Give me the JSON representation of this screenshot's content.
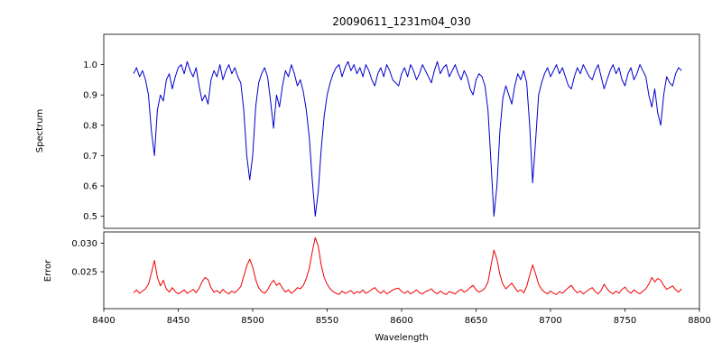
{
  "figure": {
    "background": "#ffffff"
  },
  "chart_data": {
    "type": "line",
    "title": "20090611_1231m04_030",
    "xlabel": "Wavelength",
    "xlim": [
      8400,
      8800
    ],
    "x_start": 8420,
    "x_step": 2,
    "x_ticks": [
      8400,
      8450,
      8500,
      8550,
      8600,
      8650,
      8700,
      8750,
      8800
    ],
    "x_tick_labels": [
      "8400",
      "8450",
      "8500",
      "8550",
      "8600",
      "8650",
      "8700",
      "8750",
      "8800"
    ],
    "grid": false,
    "legend": "none",
    "panels": [
      {
        "name": "spectrum",
        "ylabel": "Spectrum",
        "color": "#0000cc",
        "ylim": [
          0.46,
          1.1
        ],
        "y_ticks": [
          0.5,
          0.6,
          0.7,
          0.8,
          0.9,
          1.0
        ],
        "y_tick_labels": [
          "0.5",
          "0.6",
          "0.7",
          "0.8",
          "0.9",
          "1.0"
        ],
        "values": [
          0.97,
          0.99,
          0.96,
          0.98,
          0.95,
          0.9,
          0.78,
          0.7,
          0.85,
          0.9,
          0.88,
          0.95,
          0.97,
          0.92,
          0.96,
          0.99,
          1.0,
          0.97,
          1.01,
          0.98,
          0.96,
          0.99,
          0.93,
          0.88,
          0.9,
          0.87,
          0.95,
          0.98,
          0.96,
          1.0,
          0.95,
          0.98,
          1.0,
          0.97,
          0.99,
          0.96,
          0.94,
          0.85,
          0.7,
          0.62,
          0.7,
          0.86,
          0.94,
          0.97,
          0.99,
          0.96,
          0.88,
          0.79,
          0.9,
          0.86,
          0.93,
          0.98,
          0.96,
          1.0,
          0.97,
          0.93,
          0.95,
          0.91,
          0.85,
          0.76,
          0.62,
          0.5,
          0.58,
          0.72,
          0.83,
          0.9,
          0.94,
          0.97,
          0.99,
          1.0,
          0.96,
          0.99,
          1.01,
          0.98,
          1.0,
          0.97,
          0.99,
          0.96,
          1.0,
          0.98,
          0.95,
          0.93,
          0.97,
          0.99,
          0.96,
          1.0,
          0.98,
          0.95,
          0.94,
          0.93,
          0.97,
          0.99,
          0.96,
          1.0,
          0.98,
          0.95,
          0.97,
          1.0,
          0.98,
          0.96,
          0.94,
          0.98,
          1.01,
          0.97,
          0.99,
          1.0,
          0.96,
          0.98,
          1.0,
          0.97,
          0.95,
          0.98,
          0.96,
          0.92,
          0.9,
          0.95,
          0.97,
          0.96,
          0.93,
          0.85,
          0.68,
          0.5,
          0.6,
          0.78,
          0.89,
          0.93,
          0.9,
          0.87,
          0.93,
          0.97,
          0.95,
          0.98,
          0.94,
          0.8,
          0.61,
          0.75,
          0.9,
          0.94,
          0.97,
          0.99,
          0.96,
          0.98,
          1.0,
          0.97,
          0.99,
          0.96,
          0.93,
          0.92,
          0.96,
          0.99,
          0.97,
          1.0,
          0.98,
          0.96,
          0.95,
          0.98,
          1.0,
          0.96,
          0.92,
          0.95,
          0.98,
          1.0,
          0.97,
          0.99,
          0.95,
          0.93,
          0.97,
          0.99,
          0.95,
          0.97,
          1.0,
          0.98,
          0.96,
          0.9,
          0.86,
          0.92,
          0.84,
          0.8,
          0.9,
          0.96,
          0.94,
          0.93,
          0.97,
          0.99,
          0.98
        ]
      },
      {
        "name": "error",
        "ylabel": "Error",
        "color": "#ee0000",
        "ylim": [
          0.0185,
          0.032
        ],
        "y_ticks": [
          0.025,
          0.03
        ],
        "y_tick_labels": [
          "0.025",
          "0.030"
        ],
        "values": [
          0.0213,
          0.0218,
          0.0212,
          0.0216,
          0.022,
          0.0228,
          0.0248,
          0.027,
          0.024,
          0.0225,
          0.0235,
          0.022,
          0.0214,
          0.0222,
          0.0215,
          0.0211,
          0.0214,
          0.0218,
          0.0212,
          0.0215,
          0.0219,
          0.0213,
          0.0221,
          0.0232,
          0.024,
          0.0236,
          0.0222,
          0.0214,
          0.0217,
          0.0212,
          0.0219,
          0.0214,
          0.0211,
          0.0216,
          0.0213,
          0.0218,
          0.0224,
          0.0242,
          0.026,
          0.0272,
          0.0258,
          0.0236,
          0.0222,
          0.0215,
          0.0212,
          0.0218,
          0.0228,
          0.0235,
          0.0226,
          0.023,
          0.0221,
          0.0214,
          0.0218,
          0.0212,
          0.0216,
          0.0222,
          0.022,
          0.0226,
          0.0238,
          0.0256,
          0.0285,
          0.031,
          0.0295,
          0.0262,
          0.024,
          0.0228,
          0.022,
          0.0215,
          0.0212,
          0.021,
          0.0216,
          0.0212,
          0.0214,
          0.0217,
          0.0211,
          0.0215,
          0.0213,
          0.0218,
          0.0212,
          0.0215,
          0.0219,
          0.0222,
          0.0216,
          0.0212,
          0.0217,
          0.0211,
          0.0214,
          0.0218,
          0.022,
          0.0221,
          0.0215,
          0.0212,
          0.0216,
          0.0211,
          0.0214,
          0.0218,
          0.0213,
          0.0211,
          0.0215,
          0.0217,
          0.022,
          0.0214,
          0.0211,
          0.0216,
          0.0212,
          0.021,
          0.0215,
          0.0213,
          0.0211,
          0.0216,
          0.0219,
          0.0214,
          0.0217,
          0.0222,
          0.0226,
          0.0218,
          0.0214,
          0.0217,
          0.0221,
          0.0232,
          0.026,
          0.0288,
          0.0272,
          0.0245,
          0.0228,
          0.022,
          0.0225,
          0.023,
          0.0222,
          0.0215,
          0.0218,
          0.0213,
          0.0224,
          0.0244,
          0.0262,
          0.0246,
          0.0228,
          0.0219,
          0.0214,
          0.0211,
          0.0216,
          0.0212,
          0.021,
          0.0215,
          0.0212,
          0.0217,
          0.0222,
          0.0226,
          0.0218,
          0.0213,
          0.0216,
          0.0211,
          0.0215,
          0.0219,
          0.0222,
          0.0215,
          0.0211,
          0.0217,
          0.0228,
          0.022,
          0.0214,
          0.0211,
          0.0216,
          0.0212,
          0.0219,
          0.0223,
          0.0216,
          0.0212,
          0.0218,
          0.0214,
          0.0211,
          0.0216,
          0.022,
          0.0228,
          0.024,
          0.0232,
          0.0238,
          0.0235,
          0.0226,
          0.0219,
          0.0222,
          0.0225,
          0.0218,
          0.0214,
          0.022
        ]
      }
    ]
  }
}
